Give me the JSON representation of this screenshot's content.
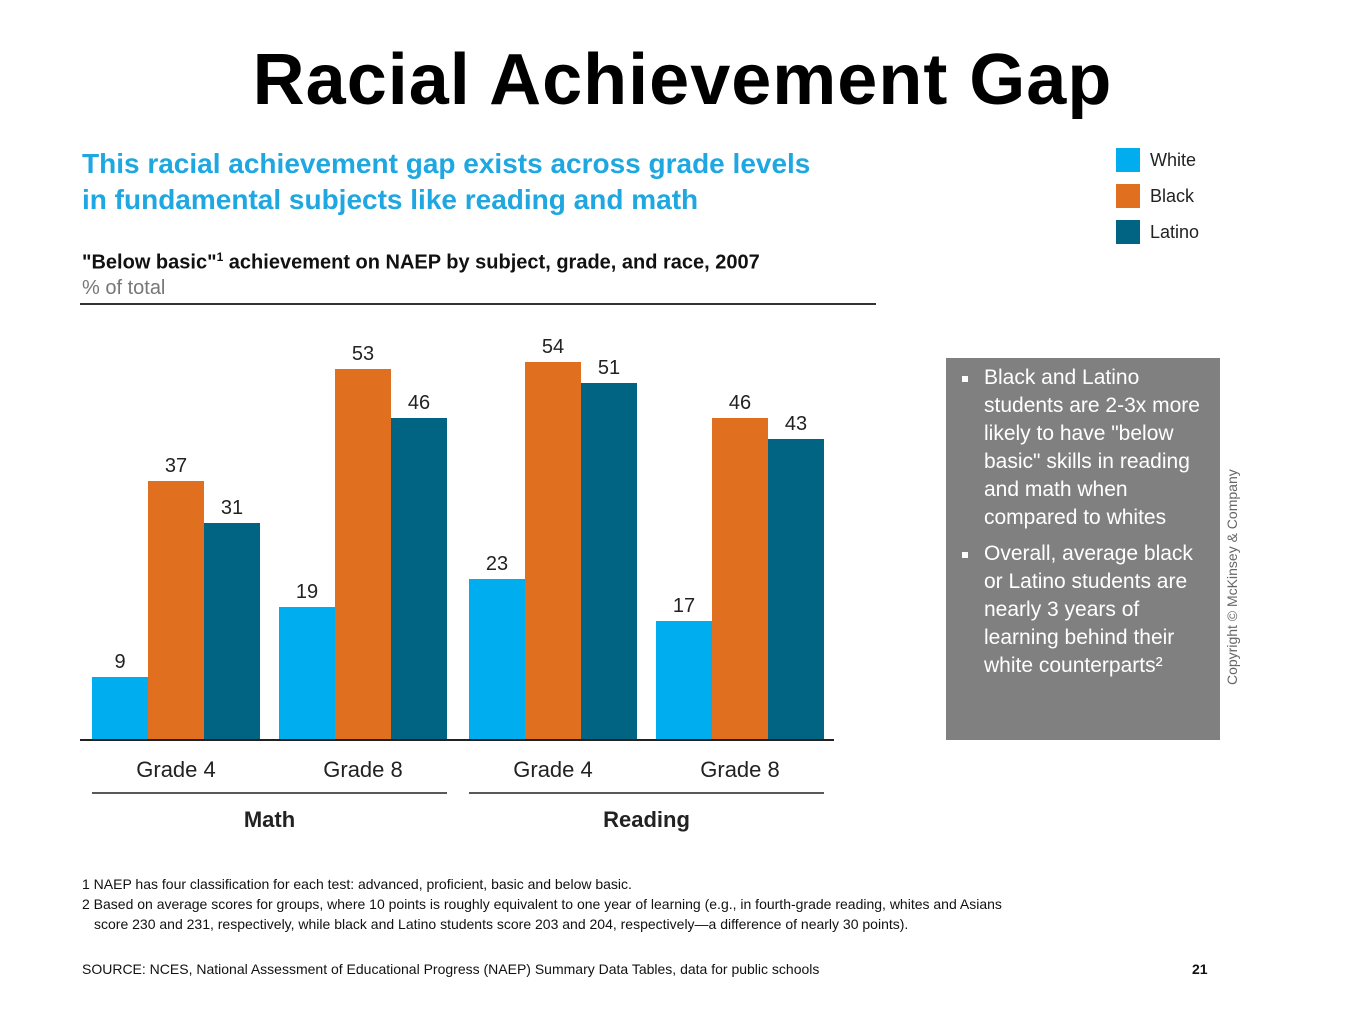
{
  "slide": {
    "title": "Racial Achievement Gap",
    "headline_line1": "This racial achievement gap exists across grade levels",
    "headline_line2": "in fundamental subjects like reading and math",
    "headline_color": "#1ea7e0",
    "page_number": "21",
    "copyright": "Copyright © McKinsey & Company"
  },
  "notes": [
    "Black and Latino students are 2-3x more likely to have \"below basic\" skills in reading and math when compared to whites",
    "Overall, average black or Latino students are nearly 3 years of learning behind their white counterparts²"
  ],
  "footnotes": {
    "f1": "1 NAEP has four classification for each test: advanced, proficient, basic and below basic.",
    "f2a": "2 Based on average scores for groups, where 10 points is roughly equivalent to one year of learning  (e.g., in fourth-grade reading, whites and Asians",
    "f2b": "score 230 and 231, respectively, while black and Latino students score 203 and 204, respectively—a difference of nearly 30 points).",
    "source": "SOURCE: NCES, National Assessment of Educational Progress (NAEP) Summary Data Tables, data for public schools"
  },
  "chart_data": {
    "type": "bar",
    "title": "\"Below basic\"",
    "title_superscript": "1",
    "title_rest": " achievement on NAEP by subject, grade, and race, 2007",
    "unit": "% of total",
    "categories": [
      "Grade 4",
      "Grade 8",
      "Grade 4",
      "Grade 8"
    ],
    "groups": [
      {
        "label": "Math",
        "categories": [
          0,
          1
        ]
      },
      {
        "label": "Reading",
        "categories": [
          2,
          3
        ]
      }
    ],
    "series": [
      {
        "name": "White",
        "color": "#00aeef",
        "values": [
          9,
          19,
          23,
          17
        ]
      },
      {
        "name": "Black",
        "color": "#e07020",
        "values": [
          37,
          53,
          54,
          46
        ]
      },
      {
        "name": "Latino",
        "color": "#006482",
        "values": [
          31,
          46,
          51,
          43
        ]
      }
    ],
    "ylim": [
      0,
      54
    ],
    "data_labels": true,
    "grid": false,
    "legend_position": "top-right"
  }
}
